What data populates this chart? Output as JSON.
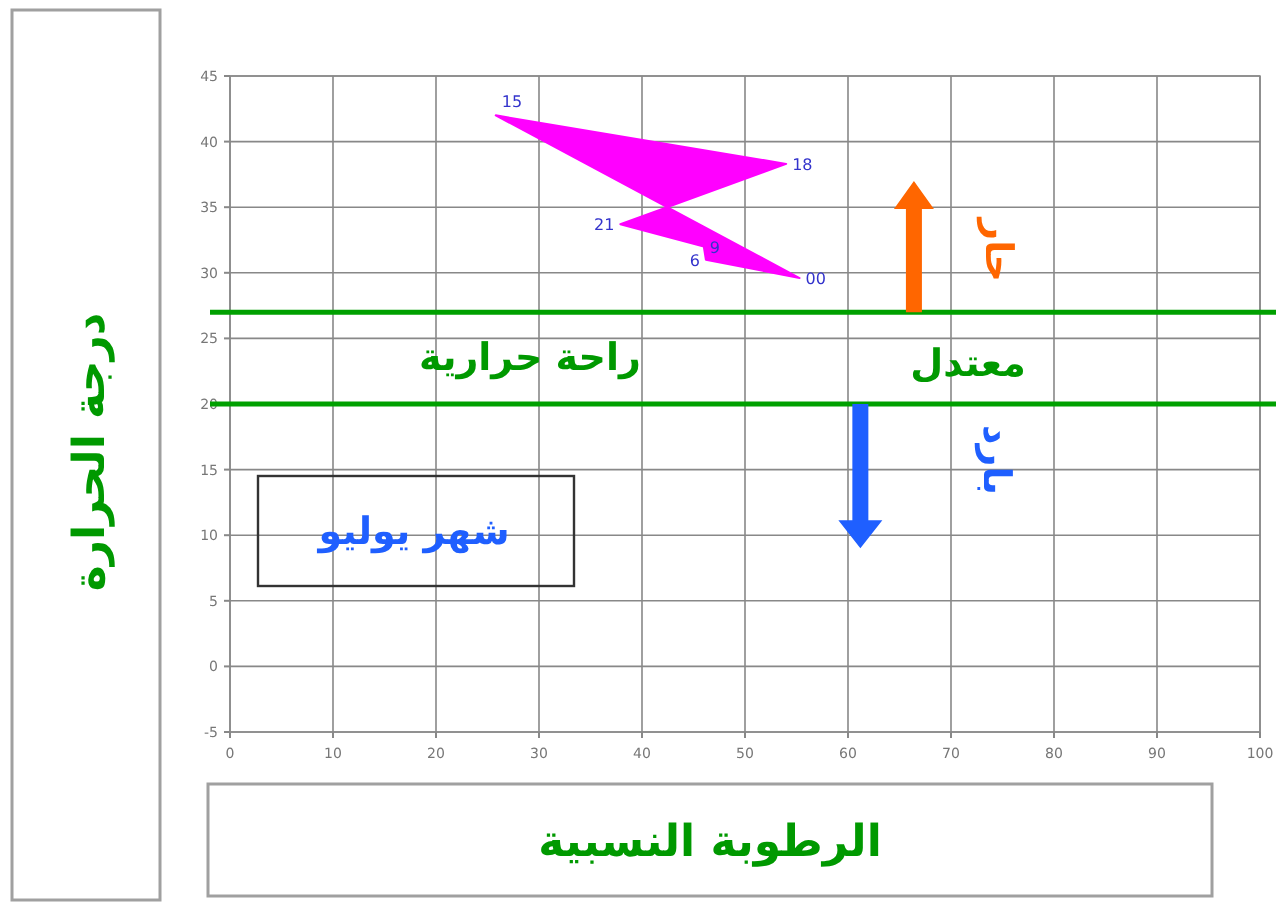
{
  "chart_data": {
    "type": "area",
    "xlabel": "الرطوبة النسبية",
    "ylabel": "درجة الحرارة",
    "xlim": [
      0,
      100
    ],
    "ylim": [
      -5,
      45
    ],
    "xticks": [
      0,
      10,
      20,
      30,
      40,
      50,
      60,
      70,
      80,
      90,
      100
    ],
    "yticks": [
      -5,
      0,
      5,
      10,
      15,
      20,
      25,
      30,
      35,
      40,
      45
    ],
    "grid": true,
    "series": [
      {
        "type": "area",
        "color": "#ff00ff",
        "x": [
          25.8,
          54,
          37.9,
          46,
          46.2,
          55.3
        ],
        "values": [
          42,
          38.3,
          33.7,
          32,
          31,
          29.6
        ]
      }
    ],
    "ref_lines": [
      {
        "axis": "y",
        "value": 27,
        "color": "#00a000"
      },
      {
        "axis": "y",
        "value": 20,
        "color": "#00a000"
      }
    ],
    "annotations": [
      "راحة حرارية",
      "معتدل",
      "حار",
      "بارد",
      "شهر يوليو",
      {
        "text": "15",
        "x": 25.8,
        "y": 42
      },
      {
        "text": "18",
        "x": 54,
        "y": 38.3
      },
      {
        "text": "21",
        "x": 37.9,
        "y": 33.7
      },
      {
        "text": "9",
        "x": 46,
        "y": 32
      },
      {
        "text": "6",
        "x": 46.2,
        "y": 31
      },
      {
        "text": "00",
        "x": 55.3,
        "y": 29.6
      }
    ]
  }
}
